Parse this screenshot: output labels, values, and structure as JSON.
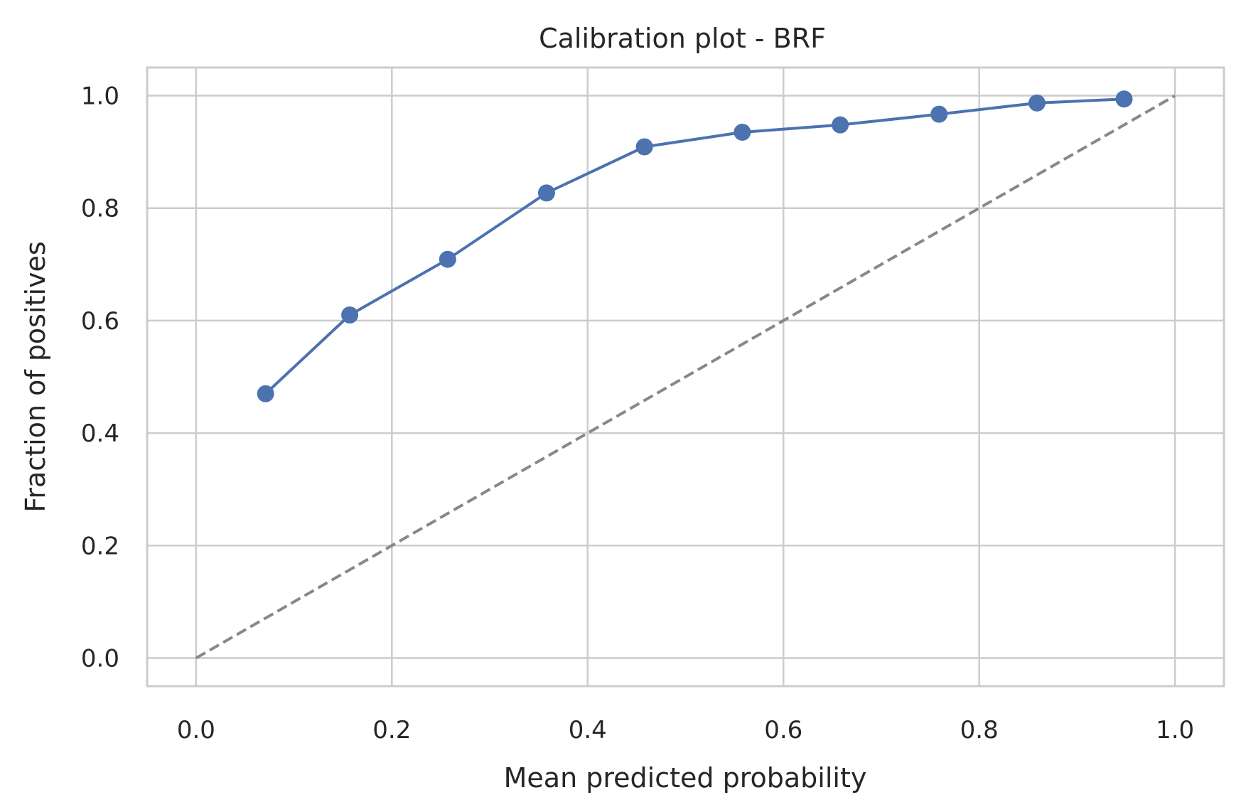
{
  "chart_data": {
    "type": "line",
    "title": "Calibration plot - BRF",
    "xlabel": "Mean predicted probability",
    "ylabel": "Fraction of positives",
    "xlim": [
      -0.05,
      1.05
    ],
    "ylim": [
      -0.05,
      1.05
    ],
    "x_ticks": [
      0.0,
      0.2,
      0.4,
      0.6,
      0.8,
      1.0
    ],
    "x_tick_labels": [
      "0.0",
      "0.2",
      "0.4",
      "0.6",
      "0.8",
      "1.0"
    ],
    "y_ticks": [
      0.0,
      0.2,
      0.4,
      0.6,
      0.8,
      1.0
    ],
    "y_tick_labels": [
      "0.0",
      "0.2",
      "0.4",
      "0.6",
      "0.8",
      "1.0"
    ],
    "grid": true,
    "legend": false,
    "series": [
      {
        "style": "line-with-markers",
        "color": "#4c72b0",
        "x": [
          0.071,
          0.157,
          0.257,
          0.358,
          0.458,
          0.558,
          0.658,
          0.759,
          0.859,
          0.948
        ],
        "y": [
          0.47,
          0.61,
          0.709,
          0.827,
          0.909,
          0.935,
          0.948,
          0.967,
          0.987,
          0.994
        ]
      },
      {
        "style": "dashed",
        "color": "#888888",
        "x": [
          0.0,
          1.0
        ],
        "y": [
          0.0,
          1.0
        ]
      }
    ]
  }
}
